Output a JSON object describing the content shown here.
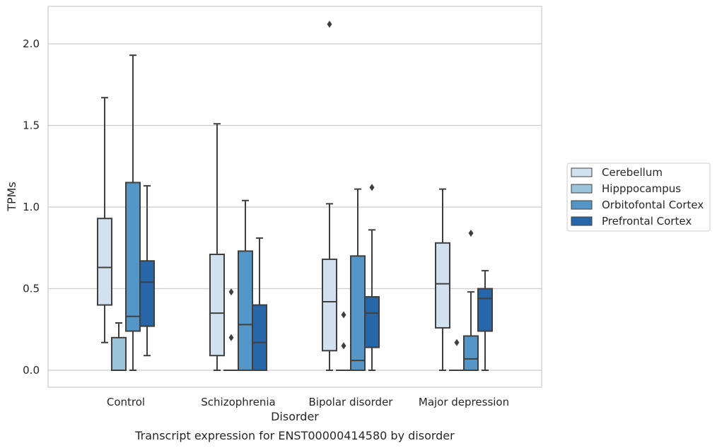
{
  "chart_data": {
    "type": "box",
    "xlabel": "Disorder",
    "ylabel": "TPMs",
    "caption": "Transcript expression for ENST00000414580 by disorder",
    "ylim": [
      -0.1,
      2.25
    ],
    "yticks": [
      0.0,
      0.5,
      1.0,
      1.5,
      2.0
    ],
    "ytick_labels": [
      "0.0",
      "0.5",
      "1.0",
      "1.5",
      "2.0"
    ],
    "grid": "horizontal",
    "legend_placement": "right",
    "categories": [
      "Control",
      "Schizophrenia",
      "Bipolar disorder",
      "Major depression"
    ],
    "series": [
      {
        "name": "Cerebellum",
        "color": "#d1e1f0",
        "boxes": [
          {
            "whisker_low": 0.17,
            "q1": 0.4,
            "median": 0.63,
            "q3": 0.93,
            "whisker_high": 1.67,
            "outliers": []
          },
          {
            "whisker_low": 0.0,
            "q1": 0.09,
            "median": 0.35,
            "q3": 0.71,
            "whisker_high": 1.51,
            "outliers": []
          },
          {
            "whisker_low": 0.0,
            "q1": 0.12,
            "median": 0.42,
            "q3": 0.68,
            "whisker_high": 1.02,
            "outliers": [
              2.12
            ]
          },
          {
            "whisker_low": 0.0,
            "q1": 0.26,
            "median": 0.53,
            "q3": 0.78,
            "whisker_high": 1.11,
            "outliers": []
          }
        ]
      },
      {
        "name": "Hipppocampus",
        "color": "#9dc4dd",
        "boxes": [
          {
            "whisker_low": 0.0,
            "q1": 0.0,
            "median": 0.0,
            "q3": 0.2,
            "whisker_high": 0.29,
            "outliers": []
          },
          {
            "whisker_low": 0.0,
            "q1": 0.0,
            "median": 0.0,
            "q3": 0.0,
            "whisker_high": 0.0,
            "outliers": [
              0.48,
              0.2
            ]
          },
          {
            "whisker_low": 0.0,
            "q1": 0.0,
            "median": 0.0,
            "q3": 0.0,
            "whisker_high": 0.0,
            "outliers": [
              0.34,
              0.15
            ]
          },
          {
            "whisker_low": 0.0,
            "q1": 0.0,
            "median": 0.0,
            "q3": 0.0,
            "whisker_high": 0.0,
            "outliers": [
              0.17
            ]
          }
        ]
      },
      {
        "name": "Orbitofontal Cortex",
        "color": "#5596c8",
        "boxes": [
          {
            "whisker_low": 0.0,
            "q1": 0.24,
            "median": 0.33,
            "q3": 1.15,
            "whisker_high": 1.93,
            "outliers": []
          },
          {
            "whisker_low": 0.0,
            "q1": 0.0,
            "median": 0.28,
            "q3": 0.73,
            "whisker_high": 1.04,
            "outliers": []
          },
          {
            "whisker_low": 0.0,
            "q1": 0.0,
            "median": 0.06,
            "q3": 0.7,
            "whisker_high": 1.11,
            "outliers": []
          },
          {
            "whisker_low": 0.0,
            "q1": 0.0,
            "median": 0.07,
            "q3": 0.21,
            "whisker_high": 0.48,
            "outliers": [
              0.84
            ]
          }
        ]
      },
      {
        "name": "Prefrontal Cortex",
        "color": "#2766a8",
        "boxes": [
          {
            "whisker_low": 0.09,
            "q1": 0.27,
            "median": 0.54,
            "q3": 0.67,
            "whisker_high": 1.13,
            "outliers": []
          },
          {
            "whisker_low": 0.0,
            "q1": 0.0,
            "median": 0.17,
            "q3": 0.4,
            "whisker_high": 0.81,
            "outliers": []
          },
          {
            "whisker_low": 0.0,
            "q1": 0.14,
            "median": 0.35,
            "q3": 0.45,
            "whisker_high": 0.86,
            "outliers": [
              1.12
            ]
          },
          {
            "whisker_low": 0.0,
            "q1": 0.24,
            "median": 0.44,
            "q3": 0.5,
            "whisker_high": 0.61,
            "outliers": []
          }
        ]
      }
    ]
  }
}
